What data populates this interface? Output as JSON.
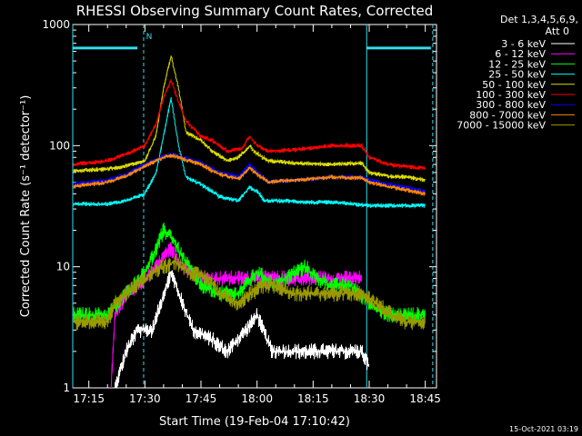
{
  "chart_data": {
    "type": "line",
    "title": "RHESSI Observing Summary Count Rates, Corrected",
    "xlabel": "Start Time (19-Feb-04 17:10:42)",
    "ylabel": "Corrected Count Rate (s⁻¹ detector⁻¹)",
    "y_scale": "log",
    "ylim": [
      1,
      1000
    ],
    "y_ticks": [
      {
        "v": 1,
        "label": "1"
      },
      {
        "v": 10,
        "label": "10"
      },
      {
        "v": 100,
        "label": "100"
      },
      {
        "v": 1000,
        "label": "1000"
      }
    ],
    "xlim": [
      "17:10:42",
      "18:48:00"
    ],
    "x_ticks": [
      "17:15",
      "17:30",
      "17:45",
      "18:00",
      "18:15",
      "18:30",
      "18:45"
    ],
    "legend_title": "Det 1,3,4,5,6,9,",
    "legend_subtitle": "Att 0",
    "legend_position": "top-right",
    "timestamp": "15-Oct-2021 03:19",
    "flag_label": "N",
    "time_range_markers": [
      "17:10:42",
      "17:29:40",
      "18:29:20",
      "18:47:00"
    ],
    "shaded_bars": [
      {
        "start": "17:10:42",
        "end": "17:28:00",
        "value": 800
      },
      {
        "start": "18:29:20",
        "end": "18:46:30",
        "value": 800
      }
    ],
    "dashed_markers": [
      "17:29:40",
      "18:47:00"
    ],
    "series": [
      {
        "name": "3 - 6 keV",
        "color": "#ffffff",
        "points": [
          [
            "17:22",
            1
          ],
          [
            "17:25",
            2
          ],
          [
            "17:28",
            3
          ],
          [
            "17:32",
            3
          ],
          [
            "17:35",
            6
          ],
          [
            "17:37",
            9
          ],
          [
            "17:40",
            5
          ],
          [
            "17:43",
            3
          ],
          [
            "17:48",
            2.5
          ],
          [
            "17:52",
            2
          ],
          [
            "17:57",
            3
          ],
          [
            "18:00",
            4
          ],
          [
            "18:04",
            2
          ],
          [
            "18:10",
            2
          ],
          [
            "18:15",
            2
          ],
          [
            "18:20",
            2
          ],
          [
            "18:25",
            2
          ],
          [
            "18:28",
            2
          ],
          [
            "18:30",
            1.5
          ]
        ]
      },
      {
        "name": "6 - 12 keV",
        "color": "#ff00ff",
        "points": [
          [
            "17:21",
            1
          ],
          [
            "17:22",
            4
          ],
          [
            "17:25",
            6
          ],
          [
            "17:28",
            7
          ],
          [
            "17:32",
            9
          ],
          [
            "17:35",
            12
          ],
          [
            "17:37",
            14
          ],
          [
            "17:40",
            10
          ],
          [
            "17:45",
            8
          ],
          [
            "17:50",
            8
          ],
          [
            "17:55",
            8
          ],
          [
            "18:00",
            8
          ],
          [
            "18:05",
            8
          ],
          [
            "18:10",
            8
          ],
          [
            "18:15",
            8
          ],
          [
            "18:20",
            8
          ],
          [
            "18:25",
            8
          ],
          [
            "18:28",
            8
          ]
        ]
      },
      {
        "name": "12 - 25 keV",
        "color": "#00ff00",
        "points": [
          [
            "17:11",
            4
          ],
          [
            "17:20",
            4
          ],
          [
            "17:25",
            6
          ],
          [
            "17:30",
            9
          ],
          [
            "17:33",
            14
          ],
          [
            "17:35",
            20
          ],
          [
            "17:37",
            18
          ],
          [
            "17:40",
            12
          ],
          [
            "17:45",
            7
          ],
          [
            "17:50",
            6
          ],
          [
            "17:55",
            6
          ],
          [
            "18:00",
            9
          ],
          [
            "18:05",
            7
          ],
          [
            "18:10",
            9
          ],
          [
            "18:13",
            10
          ],
          [
            "18:16",
            8
          ],
          [
            "18:20",
            7
          ],
          [
            "18:25",
            7
          ],
          [
            "18:30",
            5
          ],
          [
            "18:35",
            4
          ],
          [
            "18:40",
            4
          ],
          [
            "18:45",
            4
          ]
        ]
      },
      {
        "name": "25 - 50 keV",
        "color": "#00ffff",
        "points": [
          [
            "17:11",
            33
          ],
          [
            "17:20",
            33
          ],
          [
            "17:25",
            35
          ],
          [
            "17:30",
            40
          ],
          [
            "17:33",
            60
          ],
          [
            "17:35",
            120
          ],
          [
            "17:37",
            250
          ],
          [
            "17:39",
            100
          ],
          [
            "17:41",
            55
          ],
          [
            "17:45",
            48
          ],
          [
            "17:48",
            42
          ],
          [
            "17:50",
            38
          ],
          [
            "17:55",
            35
          ],
          [
            "17:58",
            45
          ],
          [
            "18:00",
            42
          ],
          [
            "18:02",
            35
          ],
          [
            "18:08",
            35
          ],
          [
            "18:15",
            34
          ],
          [
            "18:20",
            34
          ],
          [
            "18:25",
            33
          ],
          [
            "18:30",
            32
          ],
          [
            "18:35",
            32
          ],
          [
            "18:40",
            32
          ],
          [
            "18:45",
            32
          ]
        ]
      },
      {
        "name": "50 - 100 keV",
        "color": "#dddd00",
        "points": [
          [
            "17:11",
            62
          ],
          [
            "17:20",
            64
          ],
          [
            "17:25",
            68
          ],
          [
            "17:30",
            75
          ],
          [
            "17:33",
            120
          ],
          [
            "17:35",
            300
          ],
          [
            "17:37",
            550
          ],
          [
            "17:39",
            300
          ],
          [
            "17:41",
            130
          ],
          [
            "17:45",
            110
          ],
          [
            "17:48",
            90
          ],
          [
            "17:52",
            75
          ],
          [
            "17:55",
            80
          ],
          [
            "17:58",
            100
          ],
          [
            "18:00",
            85
          ],
          [
            "18:03",
            75
          ],
          [
            "18:10",
            72
          ],
          [
            "18:20",
            70
          ],
          [
            "18:28",
            72
          ],
          [
            "18:30",
            60
          ],
          [
            "18:35",
            56
          ],
          [
            "18:40",
            55
          ],
          [
            "18:45",
            52
          ]
        ]
      },
      {
        "name": "100 - 300 keV",
        "color": "#ff0000",
        "points": [
          [
            "17:11",
            70
          ],
          [
            "17:20",
            75
          ],
          [
            "17:25",
            85
          ],
          [
            "17:30",
            100
          ],
          [
            "17:33",
            150
          ],
          [
            "17:35",
            250
          ],
          [
            "17:37",
            350
          ],
          [
            "17:39",
            230
          ],
          [
            "17:41",
            160
          ],
          [
            "17:45",
            120
          ],
          [
            "17:48",
            110
          ],
          [
            "17:52",
            90
          ],
          [
            "17:56",
            95
          ],
          [
            "17:58",
            120
          ],
          [
            "18:00",
            100
          ],
          [
            "18:03",
            90
          ],
          [
            "18:10",
            92
          ],
          [
            "18:20",
            100
          ],
          [
            "18:28",
            100
          ],
          [
            "18:30",
            80
          ],
          [
            "18:35",
            70
          ],
          [
            "18:40",
            67
          ],
          [
            "18:45",
            65
          ]
        ]
      },
      {
        "name": "300 - 800 keV",
        "color": "#0000ff",
        "points": [
          [
            "17:11",
            48
          ],
          [
            "17:20",
            52
          ],
          [
            "17:25",
            58
          ],
          [
            "17:30",
            70
          ],
          [
            "17:35",
            82
          ],
          [
            "17:37",
            85
          ],
          [
            "17:40",
            80
          ],
          [
            "17:45",
            72
          ],
          [
            "17:50",
            60
          ],
          [
            "17:55",
            55
          ],
          [
            "17:58",
            70
          ],
          [
            "18:00",
            60
          ],
          [
            "18:03",
            50
          ],
          [
            "18:10",
            52
          ],
          [
            "18:20",
            55
          ],
          [
            "18:28",
            55
          ],
          [
            "18:30",
            52
          ],
          [
            "18:35",
            48
          ],
          [
            "18:40",
            45
          ],
          [
            "18:45",
            42
          ]
        ]
      },
      {
        "name": "800 - 7000 keV",
        "color": "#ff8800",
        "points": [
          [
            "17:11",
            46
          ],
          [
            "17:20",
            50
          ],
          [
            "17:25",
            56
          ],
          [
            "17:30",
            68
          ],
          [
            "17:35",
            80
          ],
          [
            "17:37",
            83
          ],
          [
            "17:40",
            78
          ],
          [
            "17:45",
            70
          ],
          [
            "17:50",
            58
          ],
          [
            "17:55",
            53
          ],
          [
            "17:58",
            65
          ],
          [
            "18:00",
            58
          ],
          [
            "18:03",
            50
          ],
          [
            "18:10",
            52
          ],
          [
            "18:20",
            55
          ],
          [
            "18:28",
            54
          ],
          [
            "18:30",
            50
          ],
          [
            "18:35",
            46
          ],
          [
            "18:40",
            43
          ],
          [
            "18:45",
            40
          ]
        ]
      },
      {
        "name": "7000 - 15000 keV",
        "color": "#999900",
        "points": [
          [
            "17:11",
            3.5
          ],
          [
            "17:20",
            3.5
          ],
          [
            "17:22",
            5
          ],
          [
            "17:25",
            6
          ],
          [
            "17:28",
            7
          ],
          [
            "17:32",
            9
          ],
          [
            "17:35",
            10
          ],
          [
            "17:38",
            11
          ],
          [
            "17:42",
            9
          ],
          [
            "17:47",
            8
          ],
          [
            "17:50",
            6
          ],
          [
            "17:55",
            5
          ],
          [
            "17:58",
            6
          ],
          [
            "18:02",
            7
          ],
          [
            "18:05",
            7
          ],
          [
            "18:10",
            6
          ],
          [
            "18:15",
            6
          ],
          [
            "18:20",
            6
          ],
          [
            "18:25",
            6
          ],
          [
            "18:28",
            6
          ],
          [
            "18:32",
            5
          ],
          [
            "18:36",
            4
          ],
          [
            "18:40",
            3.5
          ],
          [
            "18:45",
            3.5
          ]
        ]
      }
    ]
  }
}
